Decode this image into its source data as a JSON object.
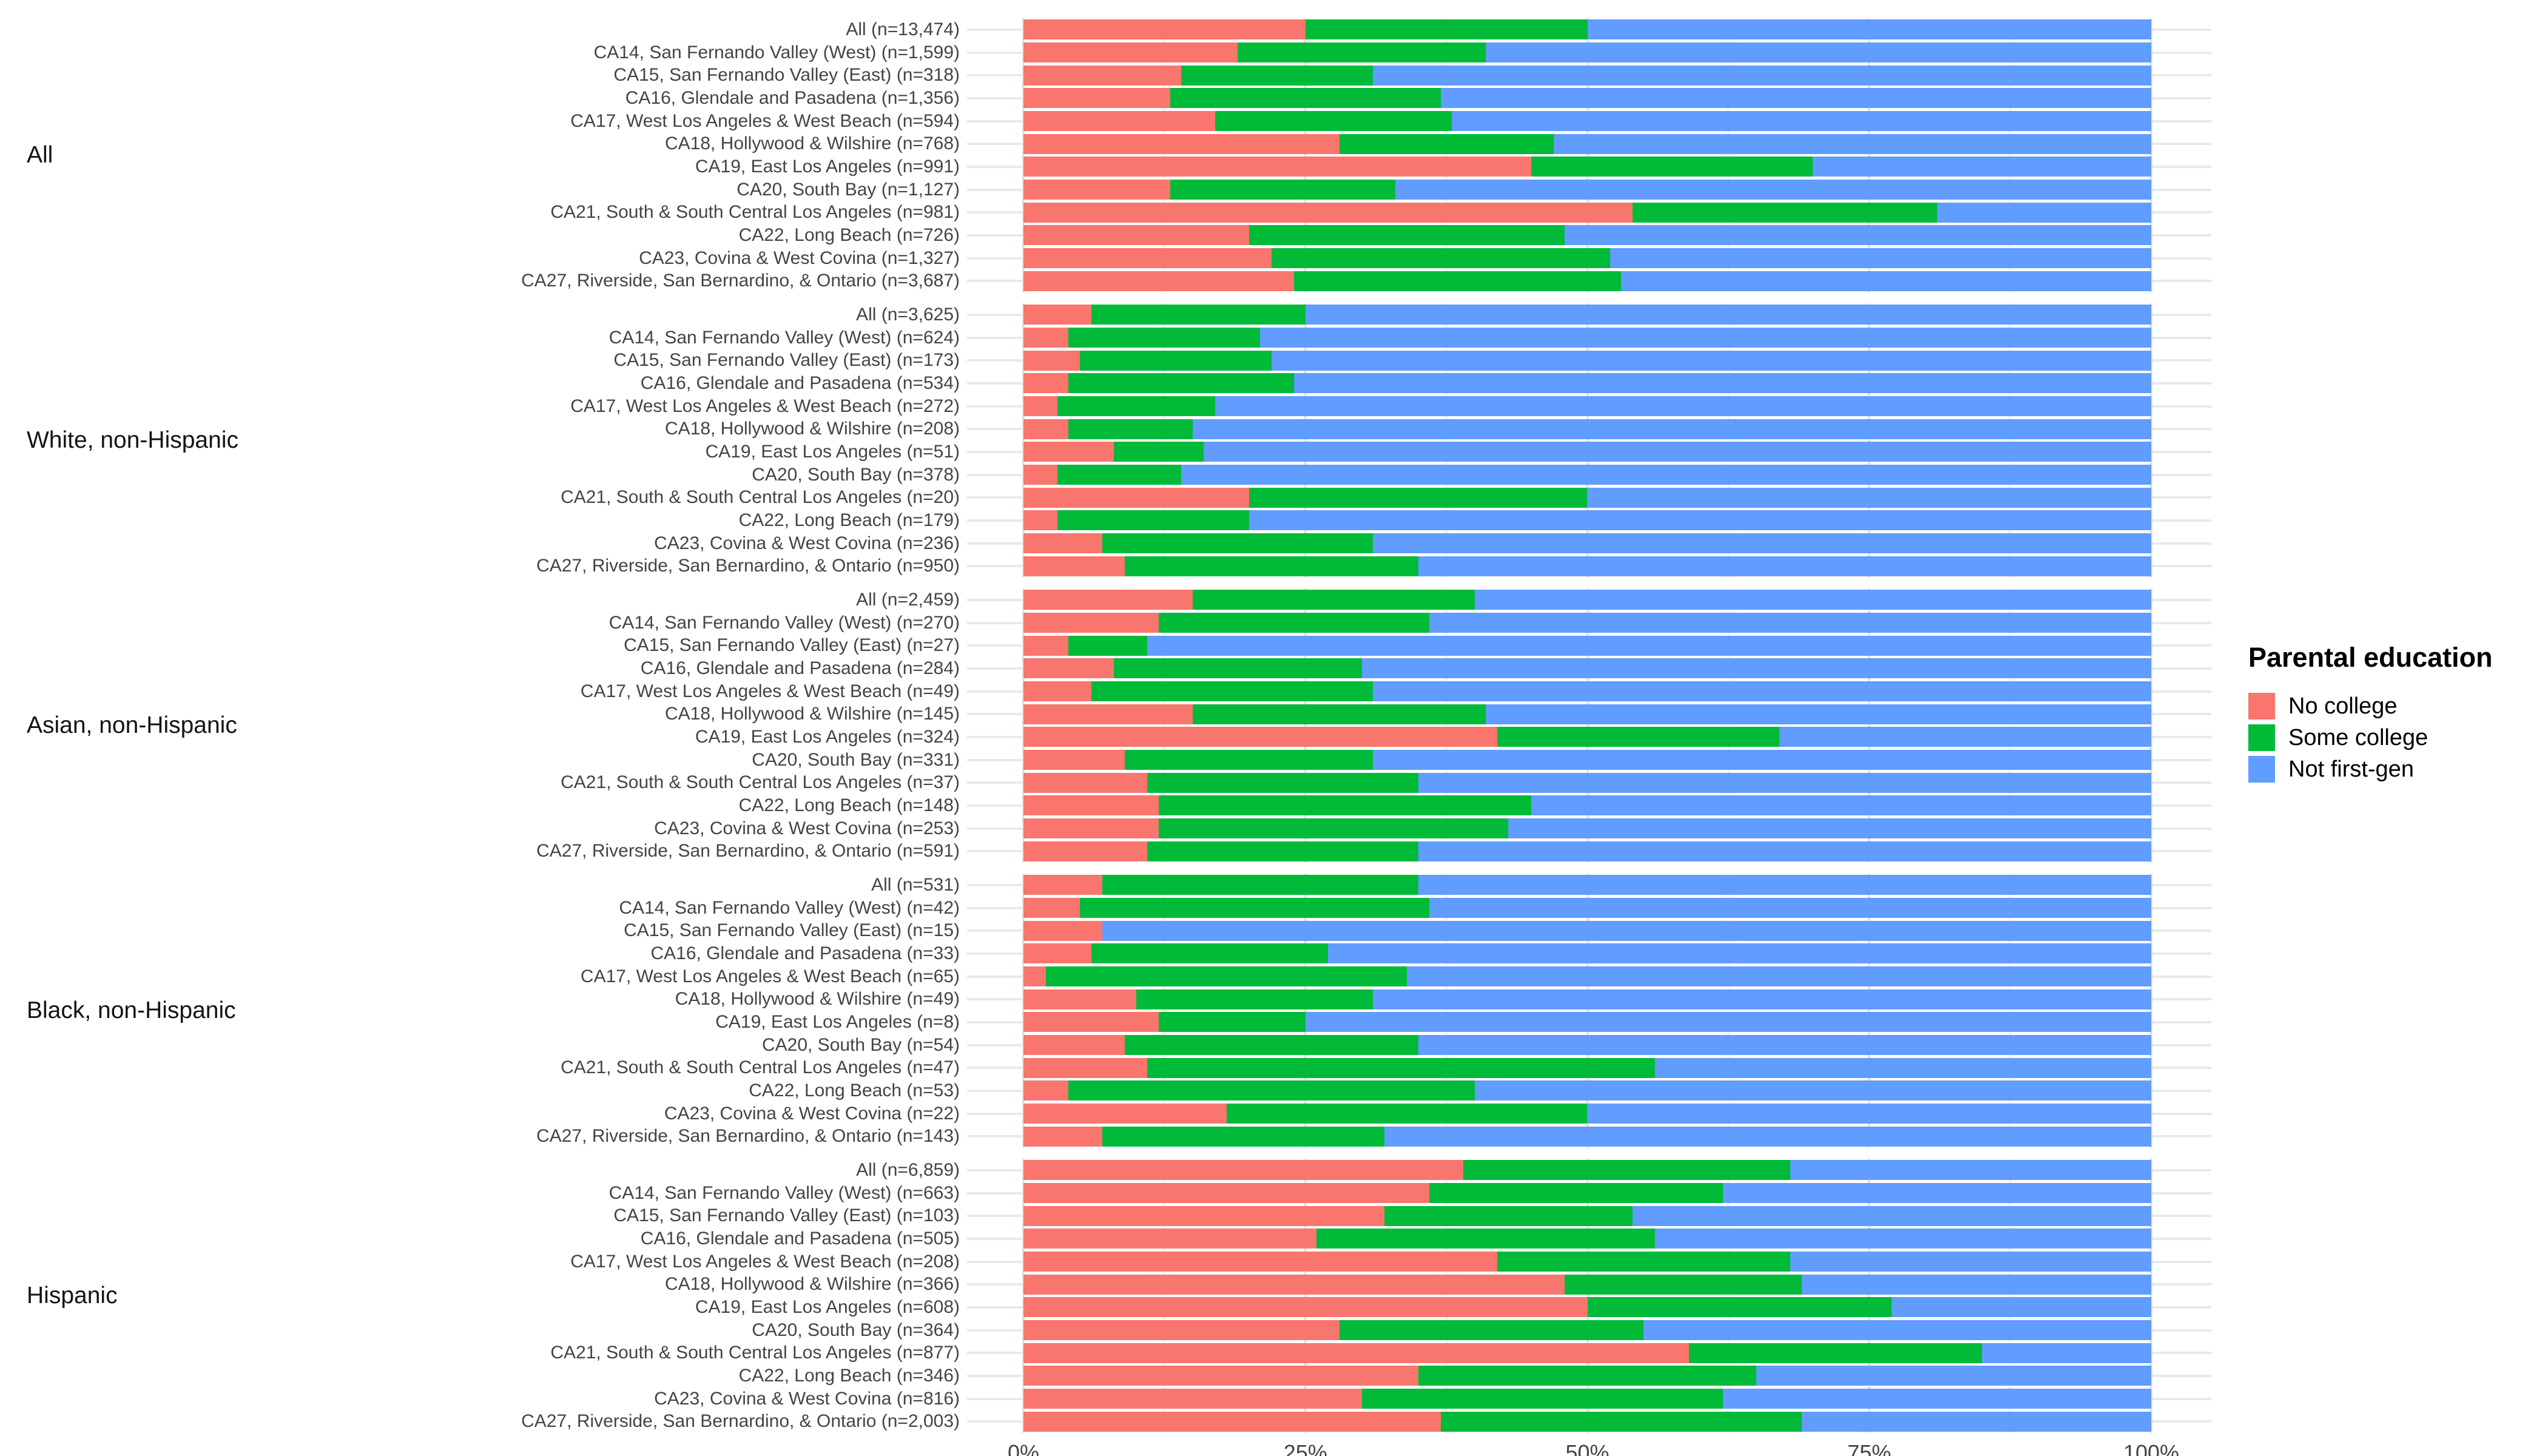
{
  "chart_data": {
    "type": "bar",
    "orientation": "horizontal",
    "stacked": true,
    "title": "",
    "xlabel": "",
    "ylabel": "",
    "unit": "percent",
    "x_range": [
      0,
      100
    ],
    "x_ticks": [
      "0%",
      "25%",
      "50%",
      "75%",
      "100%"
    ],
    "grid": true,
    "series_names": [
      "No college",
      "Some college",
      "Not first-gen"
    ],
    "colors": {
      "no_college": "#F8766D",
      "some_college": "#00BA38",
      "not_first_gen": "#619CFF"
    },
    "legend": {
      "title": "Parental education",
      "position": "right",
      "entries": [
        {
          "label": "No college",
          "color": "#F8766D"
        },
        {
          "label": "Some college",
          "color": "#00BA38"
        },
        {
          "label": "Not first-gen",
          "color": "#619CFF"
        }
      ]
    },
    "panels": [
      {
        "group": "All",
        "rows": [
          {
            "label": "All (n=13,474)",
            "values": [
              25,
              25,
              50
            ]
          },
          {
            "label": "CA14, San Fernando Valley (West) (n=1,599)",
            "values": [
              19,
              22,
              59
            ]
          },
          {
            "label": "CA15, San Fernando Valley (East) (n=318)",
            "values": [
              14,
              17,
              69
            ]
          },
          {
            "label": "CA16, Glendale and Pasadena (n=1,356)",
            "values": [
              13,
              24,
              63
            ]
          },
          {
            "label": "CA17, West Los Angeles & West Beach (n=594)",
            "values": [
              17,
              21,
              62
            ]
          },
          {
            "label": "CA18, Hollywood & Wilshire (n=768)",
            "values": [
              28,
              19,
              53
            ]
          },
          {
            "label": "CA19, East Los Angeles (n=991)",
            "values": [
              45,
              25,
              30
            ]
          },
          {
            "label": "CA20, South Bay (n=1,127)",
            "values": [
              13,
              20,
              67
            ]
          },
          {
            "label": "CA21, South & South Central Los Angeles (n=981)",
            "values": [
              54,
              27,
              19
            ]
          },
          {
            "label": "CA22, Long Beach (n=726)",
            "values": [
              20,
              28,
              52
            ]
          },
          {
            "label": "CA23, Covina & West Covina (n=1,327)",
            "values": [
              22,
              30,
              48
            ]
          },
          {
            "label": "CA27, Riverside, San Bernardino, & Ontario (n=3,687)",
            "values": [
              24,
              29,
              47
            ]
          }
        ]
      },
      {
        "group": "White, non-Hispanic",
        "rows": [
          {
            "label": "All (n=3,625)",
            "values": [
              6,
              19,
              75
            ]
          },
          {
            "label": "CA14, San Fernando Valley (West) (n=624)",
            "values": [
              4,
              17,
              79
            ]
          },
          {
            "label": "CA15, San Fernando Valley (East) (n=173)",
            "values": [
              5,
              17,
              78
            ]
          },
          {
            "label": "CA16, Glendale and Pasadena (n=534)",
            "values": [
              4,
              20,
              76
            ]
          },
          {
            "label": "CA17, West Los Angeles & West Beach (n=272)",
            "values": [
              3,
              14,
              83
            ]
          },
          {
            "label": "CA18, Hollywood & Wilshire (n=208)",
            "values": [
              4,
              11,
              85
            ]
          },
          {
            "label": "CA19, East Los Angeles (n=51)",
            "values": [
              8,
              8,
              84
            ]
          },
          {
            "label": "CA20, South Bay (n=378)",
            "values": [
              3,
              11,
              86
            ]
          },
          {
            "label": "CA21, South & South Central Los Angeles (n=20)",
            "values": [
              20,
              30,
              50
            ]
          },
          {
            "label": "CA22, Long Beach (n=179)",
            "values": [
              3,
              17,
              80
            ]
          },
          {
            "label": "CA23, Covina & West Covina (n=236)",
            "values": [
              7,
              24,
              69
            ]
          },
          {
            "label": "CA27, Riverside, San Bernardino, & Ontario (n=950)",
            "values": [
              9,
              26,
              65
            ]
          }
        ]
      },
      {
        "group": "Asian, non-Hispanic",
        "rows": [
          {
            "label": "All (n=2,459)",
            "values": [
              15,
              25,
              60
            ]
          },
          {
            "label": "CA14, San Fernando Valley (West) (n=270)",
            "values": [
              12,
              24,
              64
            ]
          },
          {
            "label": "CA15, San Fernando Valley (East) (n=27)",
            "values": [
              4,
              7,
              89
            ]
          },
          {
            "label": "CA16, Glendale and Pasadena (n=284)",
            "values": [
              8,
              22,
              70
            ]
          },
          {
            "label": "CA17, West Los Angeles & West Beach (n=49)",
            "values": [
              6,
              25,
              69
            ]
          },
          {
            "label": "CA18, Hollywood & Wilshire (n=145)",
            "values": [
              15,
              26,
              59
            ]
          },
          {
            "label": "CA19, East Los Angeles (n=324)",
            "values": [
              42,
              25,
              33
            ]
          },
          {
            "label": "CA20, South Bay (n=331)",
            "values": [
              9,
              22,
              69
            ]
          },
          {
            "label": "CA21, South & South Central Los Angeles (n=37)",
            "values": [
              11,
              24,
              65
            ]
          },
          {
            "label": "CA22, Long Beach (n=148)",
            "values": [
              12,
              33,
              55
            ]
          },
          {
            "label": "CA23, Covina & West Covina (n=253)",
            "values": [
              12,
              31,
              57
            ]
          },
          {
            "label": "CA27, Riverside, San Bernardino, & Ontario (n=591)",
            "values": [
              11,
              24,
              65
            ]
          }
        ]
      },
      {
        "group": "Black, non-Hispanic",
        "rows": [
          {
            "label": "All (n=531)",
            "values": [
              7,
              28,
              65
            ]
          },
          {
            "label": "CA14, San Fernando Valley (West) (n=42)",
            "values": [
              5,
              31,
              64
            ]
          },
          {
            "label": "CA15, San Fernando Valley (East) (n=15)",
            "values": [
              7,
              0,
              93
            ]
          },
          {
            "label": "CA16, Glendale and Pasadena (n=33)",
            "values": [
              6,
              21,
              73
            ]
          },
          {
            "label": "CA17, West Los Angeles & West Beach (n=65)",
            "values": [
              2,
              32,
              66
            ]
          },
          {
            "label": "CA18, Hollywood & Wilshire (n=49)",
            "values": [
              10,
              21,
              69
            ]
          },
          {
            "label": "CA19, East Los Angeles (n=8)",
            "values": [
              12,
              13,
              75
            ]
          },
          {
            "label": "CA20, South Bay (n=54)",
            "values": [
              9,
              26,
              65
            ]
          },
          {
            "label": "CA21, South & South Central Los Angeles (n=47)",
            "values": [
              11,
              45,
              44
            ]
          },
          {
            "label": "CA22, Long Beach (n=53)",
            "values": [
              4,
              36,
              60
            ]
          },
          {
            "label": "CA23, Covina & West Covina (n=22)",
            "values": [
              18,
              32,
              50
            ]
          },
          {
            "label": "CA27, Riverside, San Bernardino, & Ontario (n=143)",
            "values": [
              7,
              25,
              68
            ]
          }
        ]
      },
      {
        "group": "Hispanic",
        "rows": [
          {
            "label": "All (n=6,859)",
            "values": [
              39,
              29,
              32
            ]
          },
          {
            "label": "CA14, San Fernando Valley (West) (n=663)",
            "values": [
              36,
              26,
              38
            ]
          },
          {
            "label": "CA15, San Fernando Valley (East) (n=103)",
            "values": [
              32,
              22,
              46
            ]
          },
          {
            "label": "CA16, Glendale and Pasadena (n=505)",
            "values": [
              26,
              30,
              44
            ]
          },
          {
            "label": "CA17, West Los Angeles & West Beach (n=208)",
            "values": [
              42,
              26,
              32
            ]
          },
          {
            "label": "CA18, Hollywood & Wilshire (n=366)",
            "values": [
              48,
              21,
              31
            ]
          },
          {
            "label": "CA19, East Los Angeles (n=608)",
            "values": [
              50,
              27,
              23
            ]
          },
          {
            "label": "CA20, South Bay (n=364)",
            "values": [
              28,
              27,
              45
            ]
          },
          {
            "label": "CA21, South & South Central Los Angeles (n=877)",
            "values": [
              59,
              26,
              15
            ]
          },
          {
            "label": "CA22, Long Beach (n=346)",
            "values": [
              35,
              30,
              35
            ]
          },
          {
            "label": "CA23, Covina & West Covina (n=816)",
            "values": [
              30,
              32,
              38
            ]
          },
          {
            "label": "CA27, Riverside, San Bernardino, & Ontario (n=2,003)",
            "values": [
              37,
              32,
              31
            ]
          }
        ]
      }
    ]
  }
}
